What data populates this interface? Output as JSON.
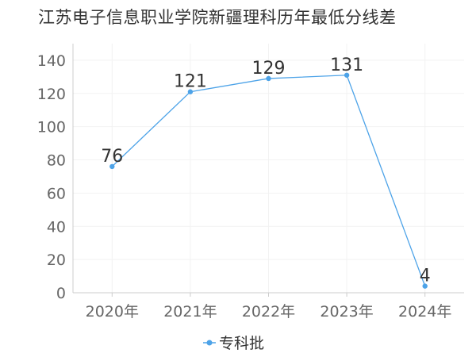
{
  "chart_data": {
    "type": "line",
    "title": "江苏电子信息职业学院新疆理科历年最低分线差",
    "categories": [
      "2020年",
      "2021年",
      "2022年",
      "2023年",
      "2024年"
    ],
    "series": [
      {
        "name": "专科批",
        "values": [
          76,
          121,
          129,
          131,
          4
        ]
      }
    ],
    "ylim": [
      0,
      150
    ],
    "yticks": [
      0,
      20,
      40,
      60,
      80,
      100,
      120,
      140
    ],
    "grid": true,
    "legend_position": "bottom-center",
    "colors": {
      "series": "#4da3e8",
      "axis": "#cccccc",
      "grid": "#f2f2f2"
    }
  }
}
